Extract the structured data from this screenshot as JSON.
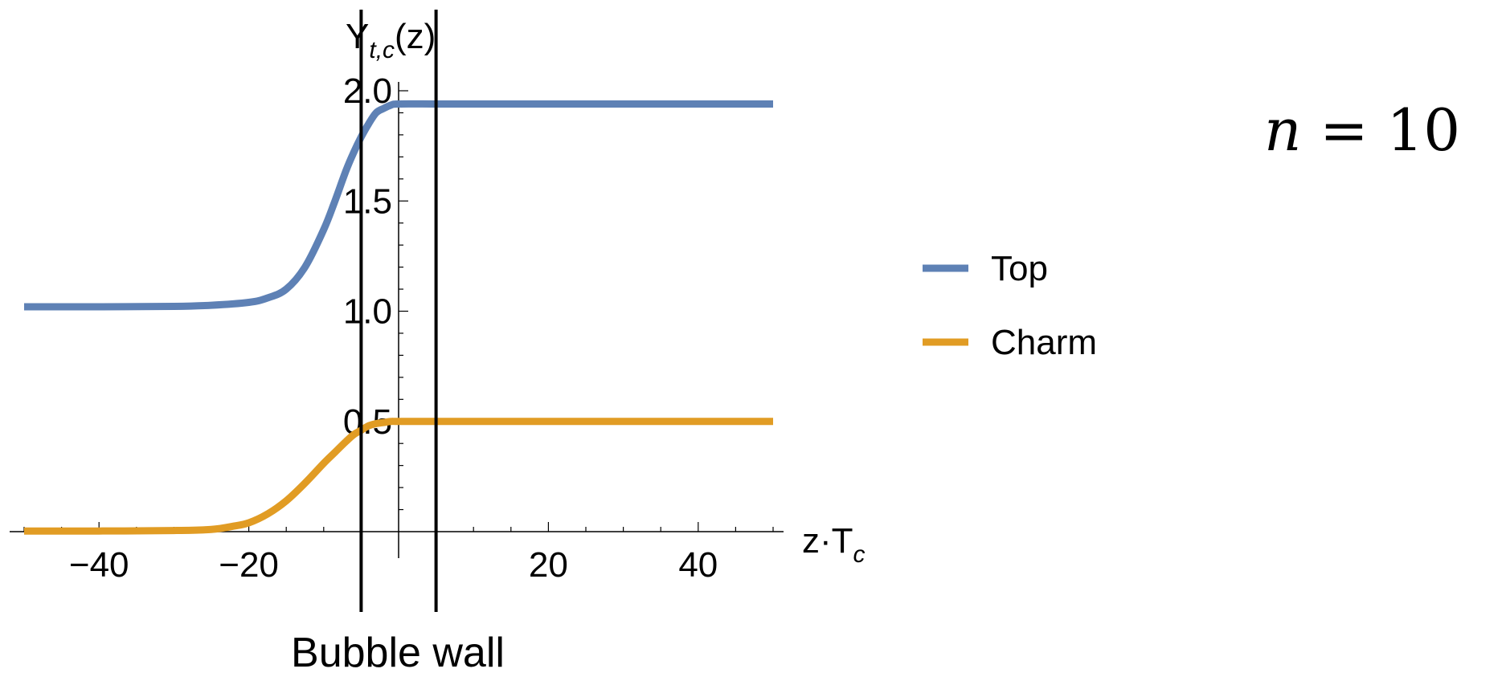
{
  "chart_data": {
    "type": "line",
    "x_label": "z·T",
    "x_label_sub": "c",
    "y_label": "Y",
    "y_label_sub": "t,c",
    "y_label_suffix": "(z)",
    "xlim": [
      -50,
      50
    ],
    "ylim": [
      0,
      2.0
    ],
    "x_ticks": [
      -40,
      -20,
      20,
      40
    ],
    "x_tick_labels": [
      "−40",
      "−20",
      "20",
      "40"
    ],
    "y_ticks": [
      0.5,
      1.0,
      1.5,
      2.0
    ],
    "y_tick_labels": [
      "0.5",
      "1.0",
      "1.5",
      "2.0"
    ],
    "grid": false,
    "legend_placement": "right",
    "series": [
      {
        "name": "Top",
        "color": "#5e81b5",
        "x": [
          -50,
          -40,
          -30,
          -25,
          -20,
          -17.5,
          -15,
          -12.5,
          -10,
          -8.5,
          -7,
          -6,
          -5,
          -4,
          -3,
          -2,
          -1,
          0,
          5,
          10,
          20,
          30,
          40,
          50
        ],
        "y": [
          1.02,
          1.02,
          1.022,
          1.027,
          1.04,
          1.06,
          1.1,
          1.2,
          1.37,
          1.5,
          1.64,
          1.72,
          1.79,
          1.85,
          1.9,
          1.92,
          1.935,
          1.94,
          1.94,
          1.94,
          1.94,
          1.94,
          1.94,
          1.94
        ]
      },
      {
        "name": "Charm",
        "color": "#e19c24",
        "x": [
          -50,
          -40,
          -30,
          -25,
          -22,
          -20,
          -17.5,
          -15,
          -12.5,
          -10,
          -8.5,
          -7,
          -6,
          -5,
          -4,
          -3,
          -2,
          -1,
          0,
          5,
          10,
          20,
          30,
          40,
          50
        ],
        "y": [
          0.003,
          0.003,
          0.005,
          0.01,
          0.025,
          0.04,
          0.08,
          0.14,
          0.22,
          0.31,
          0.36,
          0.41,
          0.44,
          0.46,
          0.48,
          0.49,
          0.495,
          0.5,
          0.5,
          0.5,
          0.5,
          0.5,
          0.5,
          0.5,
          0.5
        ]
      }
    ],
    "vertical_lines": [
      -5,
      5
    ],
    "annotations": [
      {
        "text": "Bubble wall"
      },
      {
        "text": "n = 10"
      }
    ]
  },
  "labels": {
    "bubble_wall": "Bubble wall",
    "eq_var": "n",
    "eq_rest": " = 10"
  }
}
